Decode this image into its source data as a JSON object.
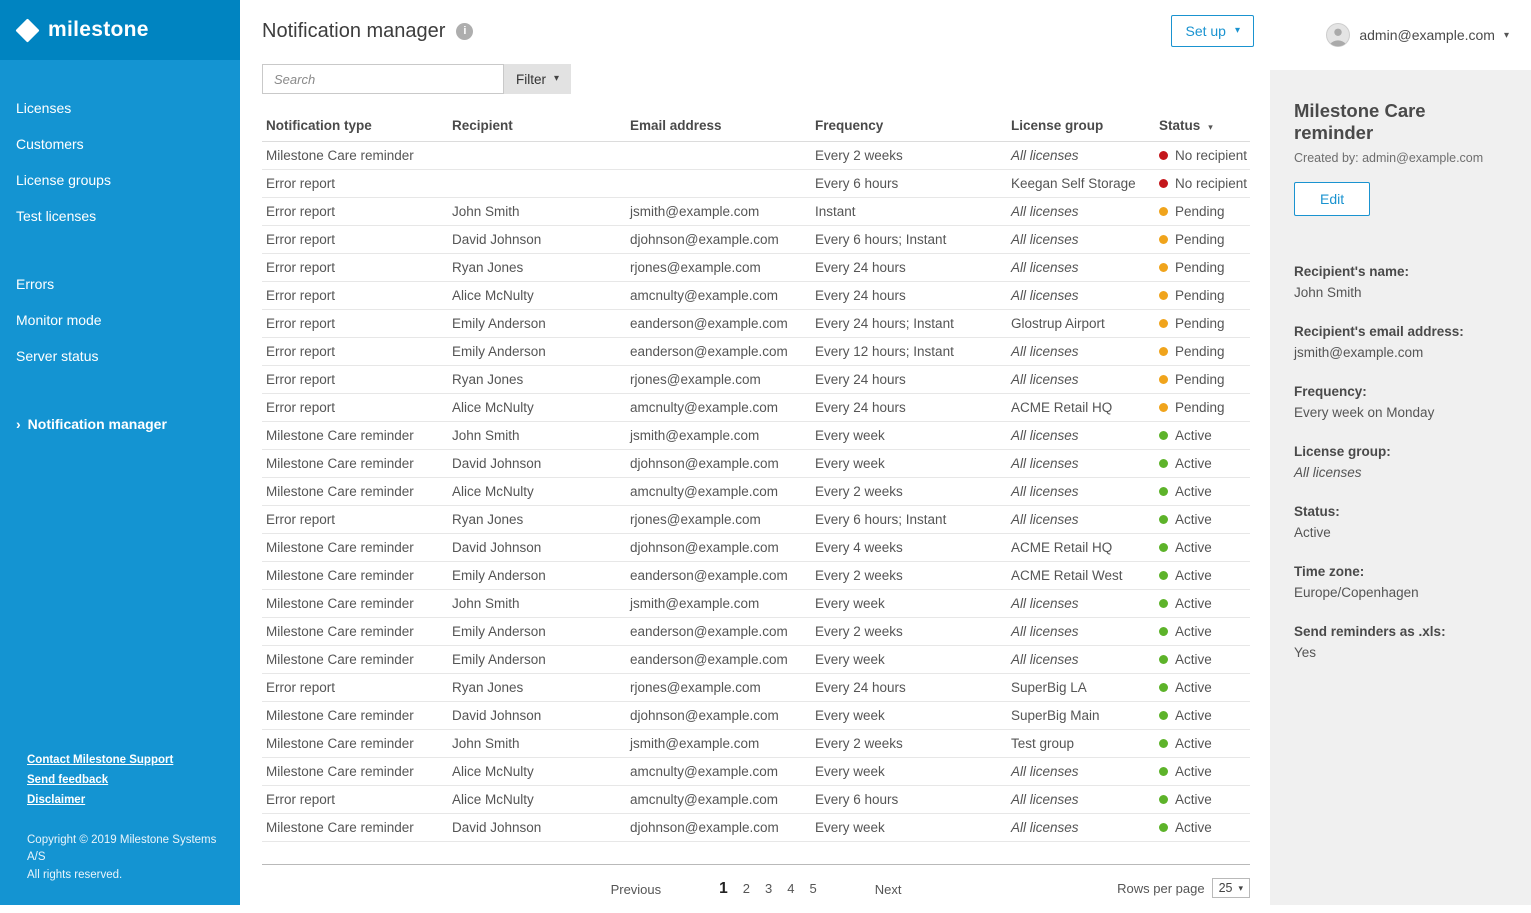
{
  "icons": {
    "caret_down": "▾",
    "chevron_right": "›",
    "info": "i"
  },
  "colors": {
    "sidebar": "#1494d2",
    "sidebar_header": "#0084c1",
    "accent_blue": "#1a93d0",
    "status_red": "#c4171c",
    "status_orange": "#f0a41c",
    "status_green": "#5db32a",
    "panel_bg": "#f0f0f0"
  },
  "brand": {
    "logo_text": "milestone"
  },
  "sidebar": {
    "items": [
      {
        "label": "Licenses"
      },
      {
        "label": "Customers"
      },
      {
        "label": "License groups"
      },
      {
        "label": "Test licenses"
      },
      {
        "label": "Errors",
        "gap_before": true
      },
      {
        "label": "Monitor mode"
      },
      {
        "label": "Server status"
      },
      {
        "label": "Notification manager",
        "active": true,
        "gap_before": true
      }
    ],
    "footer_links": [
      "Contact Milestone Support",
      "Send feedback",
      "Disclaimer"
    ],
    "copyright_line1": "Copyright © 2019 Milestone Systems A/S",
    "copyright_line2": "All rights reserved."
  },
  "header": {
    "title": "Notification manager",
    "setup_label": "Set up",
    "account_email": "admin@example.com"
  },
  "toolbar": {
    "search_placeholder": "Search",
    "search_value": "",
    "filter_label": "Filter"
  },
  "table": {
    "columns": [
      {
        "label": "Notification type"
      },
      {
        "label": "Recipient"
      },
      {
        "label": "Email address"
      },
      {
        "label": "Frequency"
      },
      {
        "label": "License group"
      },
      {
        "label": "Status",
        "sort": true
      }
    ],
    "rows": [
      {
        "type": "Milestone Care reminder",
        "recipient": "",
        "email": "",
        "frequency": "Every 2 weeks",
        "group": "All licenses",
        "group_italic": true,
        "status": "No recipient",
        "status_key": "red"
      },
      {
        "type": "Error report",
        "recipient": "",
        "email": "",
        "frequency": "Every 6 hours",
        "group": "Keegan Self Storage",
        "group_italic": false,
        "status": "No recipient",
        "status_key": "red"
      },
      {
        "type": "Error report",
        "recipient": "John Smith",
        "email": "jsmith@example.com",
        "frequency": "Instant",
        "group": "All licenses",
        "group_italic": true,
        "status": "Pending",
        "status_key": "orange"
      },
      {
        "type": "Error report",
        "recipient": "David Johnson",
        "email": "djohnson@example.com",
        "frequency": "Every 6 hours; Instant",
        "group": "All licenses",
        "group_italic": true,
        "status": "Pending",
        "status_key": "orange"
      },
      {
        "type": "Error report",
        "recipient": "Ryan Jones",
        "email": "rjones@example.com",
        "frequency": "Every 24 hours",
        "group": "All licenses",
        "group_italic": true,
        "status": "Pending",
        "status_key": "orange"
      },
      {
        "type": "Error report",
        "recipient": "Alice McNulty",
        "email": "amcnulty@example.com",
        "frequency": "Every 24 hours",
        "group": "All licenses",
        "group_italic": true,
        "status": "Pending",
        "status_key": "orange"
      },
      {
        "type": "Error report",
        "recipient": "Emily Anderson",
        "email": "eanderson@example.com",
        "frequency": "Every 24 hours; Instant",
        "group": "Glostrup Airport",
        "group_italic": false,
        "status": "Pending",
        "status_key": "orange"
      },
      {
        "type": "Error report",
        "recipient": "Emily Anderson",
        "email": "eanderson@example.com",
        "frequency": "Every 12 hours; Instant",
        "group": "All licenses",
        "group_italic": true,
        "status": "Pending",
        "status_key": "orange"
      },
      {
        "type": "Error report",
        "recipient": "Ryan Jones",
        "email": "rjones@example.com",
        "frequency": "Every 24 hours",
        "group": "All licenses",
        "group_italic": true,
        "status": "Pending",
        "status_key": "orange"
      },
      {
        "type": "Error report",
        "recipient": "Alice McNulty",
        "email": "amcnulty@example.com",
        "frequency": "Every 24 hours",
        "group": "ACME Retail HQ",
        "group_italic": false,
        "status": "Pending",
        "status_key": "orange"
      },
      {
        "type": "Milestone Care reminder",
        "recipient": "John Smith",
        "email": "jsmith@example.com",
        "frequency": "Every week",
        "group": "All licenses",
        "group_italic": true,
        "status": "Active",
        "status_key": "green"
      },
      {
        "type": "Milestone Care reminder",
        "recipient": "David Johnson",
        "email": "djohnson@example.com",
        "frequency": "Every week",
        "group": "All licenses",
        "group_italic": true,
        "status": "Active",
        "status_key": "green"
      },
      {
        "type": "Milestone Care reminder",
        "recipient": "Alice McNulty",
        "email": "amcnulty@example.com",
        "frequency": "Every 2 weeks",
        "group": "All licenses",
        "group_italic": true,
        "status": "Active",
        "status_key": "green"
      },
      {
        "type": "Error report",
        "recipient": "Ryan Jones",
        "email": "rjones@example.com",
        "frequency": "Every 6 hours; Instant",
        "group": "All licenses",
        "group_italic": true,
        "status": "Active",
        "status_key": "green"
      },
      {
        "type": "Milestone Care reminder",
        "recipient": "David Johnson",
        "email": "djohnson@example.com",
        "frequency": "Every 4 weeks",
        "group": "ACME Retail HQ",
        "group_italic": false,
        "status": "Active",
        "status_key": "green"
      },
      {
        "type": "Milestone Care reminder",
        "recipient": "Emily Anderson",
        "email": "eanderson@example.com",
        "frequency": "Every 2 weeks",
        "group": "ACME Retail West",
        "group_italic": false,
        "status": "Active",
        "status_key": "green"
      },
      {
        "type": "Milestone Care reminder",
        "recipient": "John Smith",
        "email": "jsmith@example.com",
        "frequency": "Every week",
        "group": "All licenses",
        "group_italic": true,
        "status": "Active",
        "status_key": "green"
      },
      {
        "type": "Milestone Care reminder",
        "recipient": "Emily Anderson",
        "email": "eanderson@example.com",
        "frequency": "Every 2 weeks",
        "group": "All licenses",
        "group_italic": true,
        "status": "Active",
        "status_key": "green"
      },
      {
        "type": "Milestone Care reminder",
        "recipient": "Emily Anderson",
        "email": "eanderson@example.com",
        "frequency": "Every week",
        "group": "All licenses",
        "group_italic": true,
        "status": "Active",
        "status_key": "green"
      },
      {
        "type": "Error report",
        "recipient": "Ryan Jones",
        "email": "rjones@example.com",
        "frequency": "Every 24 hours",
        "group": "SuperBig LA",
        "group_italic": false,
        "status": "Active",
        "status_key": "green"
      },
      {
        "type": "Milestone Care reminder",
        "recipient": "David Johnson",
        "email": "djohnson@example.com",
        "frequency": "Every week",
        "group": "SuperBig Main",
        "group_italic": false,
        "status": "Active",
        "status_key": "green"
      },
      {
        "type": "Milestone Care reminder",
        "recipient": "John Smith",
        "email": "jsmith@example.com",
        "frequency": "Every 2 weeks",
        "group": "Test group",
        "group_italic": false,
        "status": "Active",
        "status_key": "green"
      },
      {
        "type": "Milestone Care reminder",
        "recipient": "Alice McNulty",
        "email": "amcnulty@example.com",
        "frequency": "Every week",
        "group": "All licenses",
        "group_italic": true,
        "status": "Active",
        "status_key": "green"
      },
      {
        "type": "Error report",
        "recipient": "Alice McNulty",
        "email": "amcnulty@example.com",
        "frequency": "Every 6 hours",
        "group": "All licenses",
        "group_italic": true,
        "status": "Active",
        "status_key": "green"
      },
      {
        "type": "Milestone Care reminder",
        "recipient": "David Johnson",
        "email": "djohnson@example.com",
        "frequency": "Every week",
        "group": "All licenses",
        "group_italic": true,
        "status": "Active",
        "status_key": "green"
      }
    ]
  },
  "pagination": {
    "previous_label": "Previous",
    "pages": [
      "1",
      "2",
      "3",
      "4",
      "5"
    ],
    "current_page": "1",
    "next_label": "Next",
    "rows_per_page_label": "Rows per page",
    "rows_per_page_value": "25"
  },
  "detail_panel": {
    "title": "Milestone Care reminder",
    "created_by": "Created by: admin@example.com",
    "edit_label": "Edit",
    "fields": [
      {
        "label": "Recipient's name:",
        "value": "John Smith",
        "italic": false
      },
      {
        "label": "Recipient's email address:",
        "value": "jsmith@example.com",
        "italic": false
      },
      {
        "label": "Frequency:",
        "value": "Every week on Monday",
        "italic": false
      },
      {
        "label": "License group:",
        "value": "All licenses",
        "italic": true
      },
      {
        "label": "Status:",
        "value": "Active",
        "italic": false
      },
      {
        "label": "Time zone:",
        "value": "Europe/Copenhagen",
        "italic": false
      },
      {
        "label": "Send reminders as .xls:",
        "value": "Yes",
        "italic": false
      }
    ]
  }
}
